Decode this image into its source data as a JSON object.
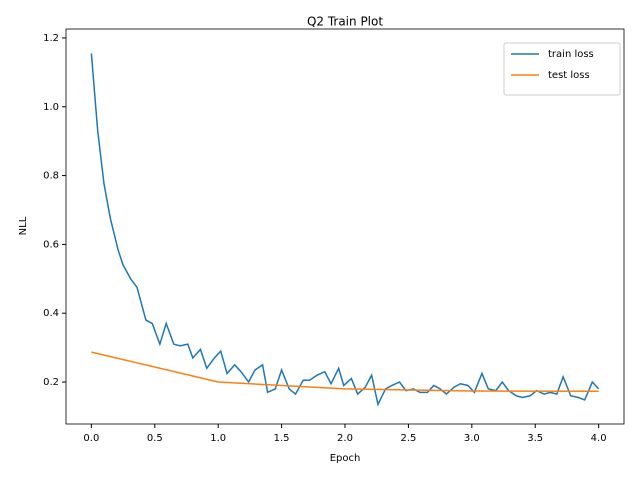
{
  "chart_data": {
    "type": "line",
    "title": "Q2 Train Plot",
    "x_label": "Epoch",
    "y_label": "NLL",
    "xlim": [
      -0.2,
      4.2
    ],
    "ylim": [
      0.078,
      1.226
    ],
    "xticks": [
      {
        "value": 0,
        "label": "0.0"
      },
      {
        "value": 0.5,
        "label": "0.5"
      },
      {
        "value": 1,
        "label": "1.0"
      },
      {
        "value": 1.5,
        "label": "1.5"
      },
      {
        "value": 2,
        "label": "2.0"
      },
      {
        "value": 2.5,
        "label": "2.5"
      },
      {
        "value": 3,
        "label": "3.0"
      },
      {
        "value": 3.5,
        "label": "3.5"
      },
      {
        "value": 4,
        "label": "4.0"
      }
    ],
    "yticks": [
      0.2,
      0.4,
      0.6,
      0.8,
      {
        "value": 1,
        "label": "1.0"
      },
      1.2
    ],
    "legend": "upper right",
    "series": [
      {
        "name": "train loss",
        "color": "#1f77b4",
        "x": [
          0,
          0.05,
          0.1,
          0.15,
          0.21,
          0.25,
          0.31,
          0.36,
          0.43,
          0.48,
          0.54,
          0.59,
          0.65,
          0.7,
          0.76,
          0.8,
          0.86,
          0.91,
          0.97,
          1.02,
          1.07,
          1.13,
          1.18,
          1.24,
          1.29,
          1.35,
          1.39,
          1.45,
          1.5,
          1.56,
          1.61,
          1.67,
          1.72,
          1.78,
          1.84,
          1.89,
          1.95,
          1.99,
          2.05,
          2.1,
          2.16,
          2.21,
          2.26,
          2.32,
          2.37,
          2.43,
          2.48,
          2.54,
          2.59,
          2.65,
          2.7,
          2.75,
          2.8,
          2.86,
          2.91,
          2.97,
          3.02,
          3.08,
          3.13,
          3.19,
          3.24,
          3.29,
          3.35,
          3.4,
          3.46,
          3.51,
          3.57,
          3.62,
          3.67,
          3.72,
          3.78,
          3.84,
          3.89,
          3.95,
          4.0
        ],
        "values": [
          1.155,
          0.93,
          0.775,
          0.675,
          0.585,
          0.54,
          0.5,
          0.475,
          0.38,
          0.37,
          0.31,
          0.37,
          0.31,
          0.305,
          0.31,
          0.27,
          0.295,
          0.24,
          0.27,
          0.29,
          0.225,
          0.25,
          0.23,
          0.2,
          0.235,
          0.25,
          0.17,
          0.18,
          0.235,
          0.18,
          0.165,
          0.205,
          0.205,
          0.22,
          0.23,
          0.195,
          0.24,
          0.19,
          0.21,
          0.165,
          0.185,
          0.22,
          0.135,
          0.18,
          0.19,
          0.2,
          0.175,
          0.18,
          0.17,
          0.17,
          0.19,
          0.18,
          0.165,
          0.185,
          0.195,
          0.19,
          0.17,
          0.225,
          0.18,
          0.175,
          0.2,
          0.175,
          0.16,
          0.155,
          0.16,
          0.175,
          0.165,
          0.17,
          0.165,
          0.215,
          0.16,
          0.155,
          0.148,
          0.2,
          0.18
        ]
      },
      {
        "name": "test loss",
        "color": "#ff7f0e",
        "x": [
          0,
          1,
          2,
          3,
          4
        ],
        "values": [
          0.287,
          0.2,
          0.18,
          0.174,
          0.173
        ]
      }
    ]
  }
}
